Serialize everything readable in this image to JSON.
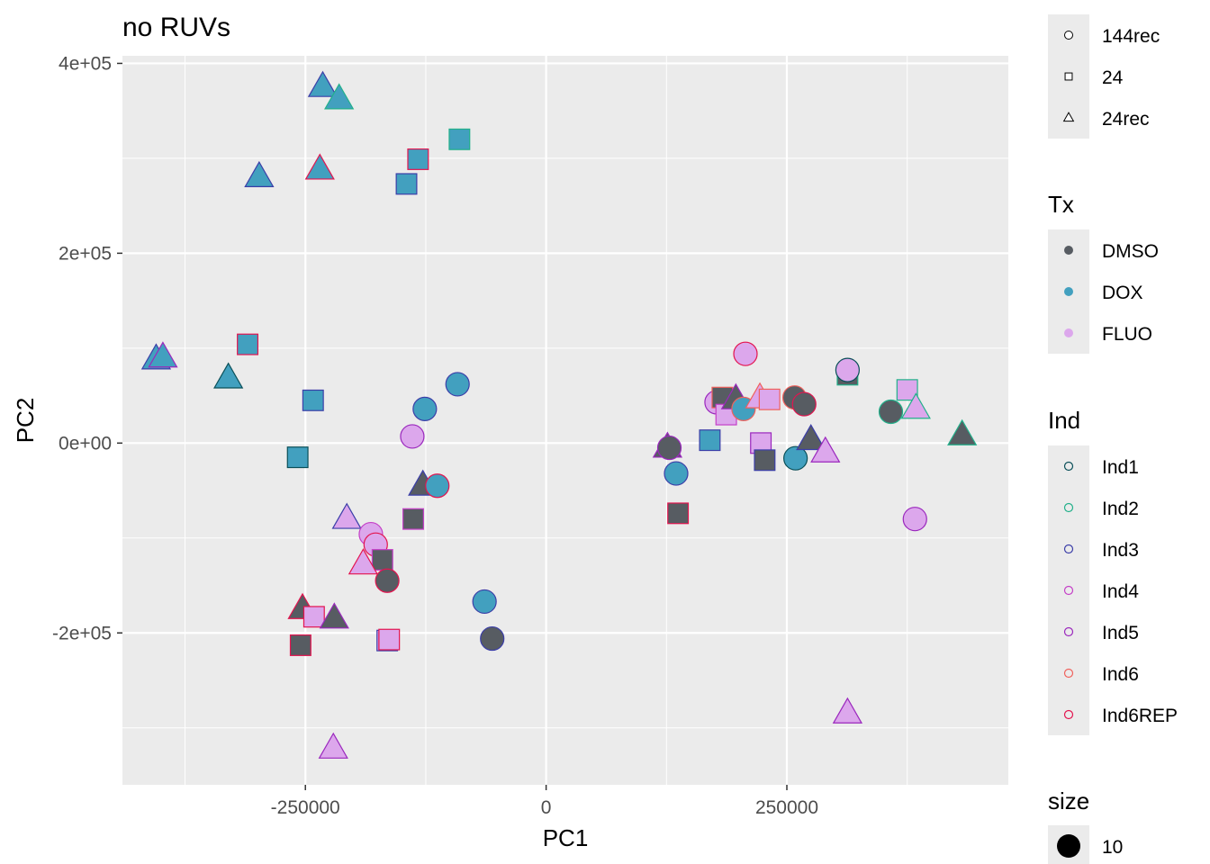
{
  "chart_data": {
    "type": "scatter",
    "title": "no RUVs",
    "xlabel": "PC1",
    "ylabel": "PC2",
    "xlim": [
      -440000,
      480000
    ],
    "ylim": [
      -360000,
      408000
    ],
    "x_ticks": [
      {
        "value": -250000,
        "label": "-250000"
      },
      {
        "value": 0,
        "label": "0"
      },
      {
        "value": 250000,
        "label": "250000"
      }
    ],
    "y_ticks": [
      {
        "value": 400000,
        "label": "4e+05"
      },
      {
        "value": 200000,
        "label": "2e+05"
      },
      {
        "value": 0,
        "label": "0e+00"
      },
      {
        "value": -200000,
        "label": "-2e+05"
      }
    ],
    "grid": true,
    "background": "#ebebeb",
    "legend_position": "right",
    "legends": {
      "shape": {
        "title": "",
        "items": [
          {
            "label": "144rec",
            "shape": "circle"
          },
          {
            "label": "24",
            "shape": "square"
          },
          {
            "label": "24rec",
            "shape": "triangle"
          }
        ]
      },
      "tx": {
        "title": "Tx",
        "items": [
          {
            "label": "DMSO",
            "color": "#575c62"
          },
          {
            "label": "DOX",
            "color": "#42a0bf"
          },
          {
            "label": "FLUO",
            "color": "#dca7ec"
          }
        ]
      },
      "ind": {
        "title": "Ind",
        "items": [
          {
            "label": "Ind1",
            "color": "#0a4f58"
          },
          {
            "label": "Ind2",
            "color": "#22b08a"
          },
          {
            "label": "Ind3",
            "color": "#3b3ea8"
          },
          {
            "label": "Ind4",
            "color": "#c43fc7"
          },
          {
            "label": "Ind5",
            "color": "#9a27bd"
          },
          {
            "label": "Ind6",
            "color": "#f0615c"
          },
          {
            "label": "Ind6REP",
            "color": "#e3144f"
          }
        ]
      },
      "size": {
        "title": "size",
        "items": [
          {
            "label": "10"
          }
        ]
      }
    },
    "points": [
      {
        "x": -405000,
        "y": 88000,
        "shape": "triangle",
        "tx": "DOX",
        "ind": "Ind3"
      },
      {
        "x": -398000,
        "y": 90000,
        "shape": "triangle",
        "tx": "DOX",
        "ind": "Ind5"
      },
      {
        "x": -330000,
        "y": 68000,
        "shape": "triangle",
        "tx": "DOX",
        "ind": "Ind1"
      },
      {
        "x": -298000,
        "y": 280000,
        "shape": "triangle",
        "tx": "DOX",
        "ind": "Ind3"
      },
      {
        "x": -232000,
        "y": 375000,
        "shape": "triangle",
        "tx": "DOX",
        "ind": "Ind3"
      },
      {
        "x": -215000,
        "y": 362000,
        "shape": "triangle",
        "tx": "DOX",
        "ind": "Ind2"
      },
      {
        "x": -235000,
        "y": 288000,
        "shape": "triangle",
        "tx": "DOX",
        "ind": "Ind6REP"
      },
      {
        "x": -310000,
        "y": 104000,
        "shape": "square",
        "tx": "DOX",
        "ind": "Ind6REP"
      },
      {
        "x": -242000,
        "y": 45000,
        "shape": "square",
        "tx": "DOX",
        "ind": "Ind3"
      },
      {
        "x": -258000,
        "y": -15000,
        "shape": "square",
        "tx": "DOX",
        "ind": "Ind1"
      },
      {
        "x": -133000,
        "y": 299000,
        "shape": "square",
        "tx": "DOX",
        "ind": "Ind6REP"
      },
      {
        "x": -145000,
        "y": 273000,
        "shape": "square",
        "tx": "DOX",
        "ind": "Ind3"
      },
      {
        "x": -90000,
        "y": 320000,
        "shape": "square",
        "tx": "DOX",
        "ind": "Ind2"
      },
      {
        "x": -126000,
        "y": 36000,
        "shape": "circle",
        "tx": "DOX",
        "ind": "Ind3"
      },
      {
        "x": -92000,
        "y": 62000,
        "shape": "circle",
        "tx": "DOX",
        "ind": "Ind3"
      },
      {
        "x": -139000,
        "y": 7000,
        "shape": "circle",
        "tx": "FLUO",
        "ind": "Ind5"
      },
      {
        "x": -128000,
        "y": -45000,
        "shape": "triangle",
        "tx": "DMSO",
        "ind": "Ind3"
      },
      {
        "x": -113000,
        "y": -45000,
        "shape": "circle",
        "tx": "DOX",
        "ind": "Ind6REP"
      },
      {
        "x": -138000,
        "y": -80000,
        "shape": "square",
        "tx": "DMSO",
        "ind": "Ind4"
      },
      {
        "x": -207000,
        "y": -80000,
        "shape": "triangle",
        "tx": "FLUO",
        "ind": "Ind3"
      },
      {
        "x": -182000,
        "y": -96000,
        "shape": "circle",
        "tx": "FLUO",
        "ind": "Ind4"
      },
      {
        "x": -177000,
        "y": -107000,
        "shape": "circle",
        "tx": "FLUO",
        "ind": "Ind6REP"
      },
      {
        "x": -170000,
        "y": -123000,
        "shape": "square",
        "tx": "DMSO",
        "ind": "Ind4"
      },
      {
        "x": -190000,
        "y": -128000,
        "shape": "triangle",
        "tx": "FLUO",
        "ind": "Ind6REP"
      },
      {
        "x": -165000,
        "y": -145000,
        "shape": "circle",
        "tx": "DMSO",
        "ind": "Ind6REP"
      },
      {
        "x": -253000,
        "y": -175000,
        "shape": "triangle",
        "tx": "DMSO",
        "ind": "Ind6REP"
      },
      {
        "x": -241000,
        "y": -183000,
        "shape": "square",
        "tx": "FLUO",
        "ind": "Ind6REP"
      },
      {
        "x": -220000,
        "y": -185000,
        "shape": "triangle",
        "tx": "DMSO",
        "ind": "Ind5"
      },
      {
        "x": -255000,
        "y": -213000,
        "shape": "square",
        "tx": "DMSO",
        "ind": "Ind6REP"
      },
      {
        "x": -165000,
        "y": -208000,
        "shape": "square",
        "tx": "FLUO",
        "ind": "Ind3"
      },
      {
        "x": -163000,
        "y": -207000,
        "shape": "square",
        "tx": "FLUO",
        "ind": "Ind6REP"
      },
      {
        "x": -221000,
        "y": -322000,
        "shape": "triangle",
        "tx": "FLUO",
        "ind": "Ind5"
      },
      {
        "x": -64000,
        "y": -167000,
        "shape": "circle",
        "tx": "DOX",
        "ind": "Ind3"
      },
      {
        "x": -56000,
        "y": -206000,
        "shape": "circle",
        "tx": "DMSO",
        "ind": "Ind3"
      },
      {
        "x": 126000,
        "y": -5000,
        "shape": "triangle",
        "tx": "DMSO",
        "ind": "Ind5"
      },
      {
        "x": 128000,
        "y": -5000,
        "shape": "circle",
        "tx": "DMSO",
        "ind": "Ind5"
      },
      {
        "x": 135000,
        "y": -32000,
        "shape": "circle",
        "tx": "DOX",
        "ind": "Ind3"
      },
      {
        "x": 137000,
        "y": -74000,
        "shape": "square",
        "tx": "DMSO",
        "ind": "Ind6REP"
      },
      {
        "x": 170000,
        "y": 3000,
        "shape": "square",
        "tx": "DOX",
        "ind": "Ind3"
      },
      {
        "x": 177000,
        "y": 43000,
        "shape": "circle",
        "tx": "FLUO",
        "ind": "Ind5"
      },
      {
        "x": 183000,
        "y": 48000,
        "shape": "square",
        "tx": "DMSO",
        "ind": "Ind6"
      },
      {
        "x": 187000,
        "y": 30000,
        "shape": "square",
        "tx": "FLUO",
        "ind": "Ind4"
      },
      {
        "x": 197000,
        "y": 46000,
        "shape": "triangle",
        "tx": "DMSO",
        "ind": "Ind5"
      },
      {
        "x": 205000,
        "y": 36000,
        "shape": "circle",
        "tx": "DOX",
        "ind": "Ind6"
      },
      {
        "x": 207000,
        "y": 94000,
        "shape": "circle",
        "tx": "FLUO",
        "ind": "Ind6REP"
      },
      {
        "x": 222000,
        "y": 47000,
        "shape": "triangle",
        "tx": "FLUO",
        "ind": "Ind6"
      },
      {
        "x": 232000,
        "y": 46000,
        "shape": "square",
        "tx": "FLUO",
        "ind": "Ind6"
      },
      {
        "x": 223000,
        "y": 0,
        "shape": "square",
        "tx": "FLUO",
        "ind": "Ind5"
      },
      {
        "x": 227000,
        "y": -18000,
        "shape": "square",
        "tx": "DMSO",
        "ind": "Ind3"
      },
      {
        "x": 258000,
        "y": 48000,
        "shape": "circle",
        "tx": "DMSO",
        "ind": "Ind6"
      },
      {
        "x": 268000,
        "y": 41000,
        "shape": "circle",
        "tx": "DMSO",
        "ind": "Ind6REP"
      },
      {
        "x": 259000,
        "y": -16000,
        "shape": "circle",
        "tx": "DOX",
        "ind": "Ind1"
      },
      {
        "x": 275000,
        "y": 3000,
        "shape": "triangle",
        "tx": "DMSO",
        "ind": "Ind3"
      },
      {
        "x": 290000,
        "y": -10000,
        "shape": "triangle",
        "tx": "FLUO",
        "ind": "Ind5"
      },
      {
        "x": 313000,
        "y": 72000,
        "shape": "square",
        "tx": "DMSO",
        "ind": "Ind2"
      },
      {
        "x": 313000,
        "y": 77000,
        "shape": "circle",
        "tx": "FLUO",
        "ind": "Ind1"
      },
      {
        "x": 358000,
        "y": 33000,
        "shape": "circle",
        "tx": "DMSO",
        "ind": "Ind2"
      },
      {
        "x": 375000,
        "y": 56000,
        "shape": "square",
        "tx": "FLUO",
        "ind": "Ind2"
      },
      {
        "x": 384000,
        "y": 36000,
        "shape": "triangle",
        "tx": "FLUO",
        "ind": "Ind2"
      },
      {
        "x": 383000,
        "y": -80000,
        "shape": "circle",
        "tx": "FLUO",
        "ind": "Ind5"
      },
      {
        "x": 432000,
        "y": 8000,
        "shape": "triangle",
        "tx": "DMSO",
        "ind": "Ind2"
      },
      {
        "x": 313000,
        "y": -285000,
        "shape": "triangle",
        "tx": "FLUO",
        "ind": "Ind5"
      }
    ]
  }
}
